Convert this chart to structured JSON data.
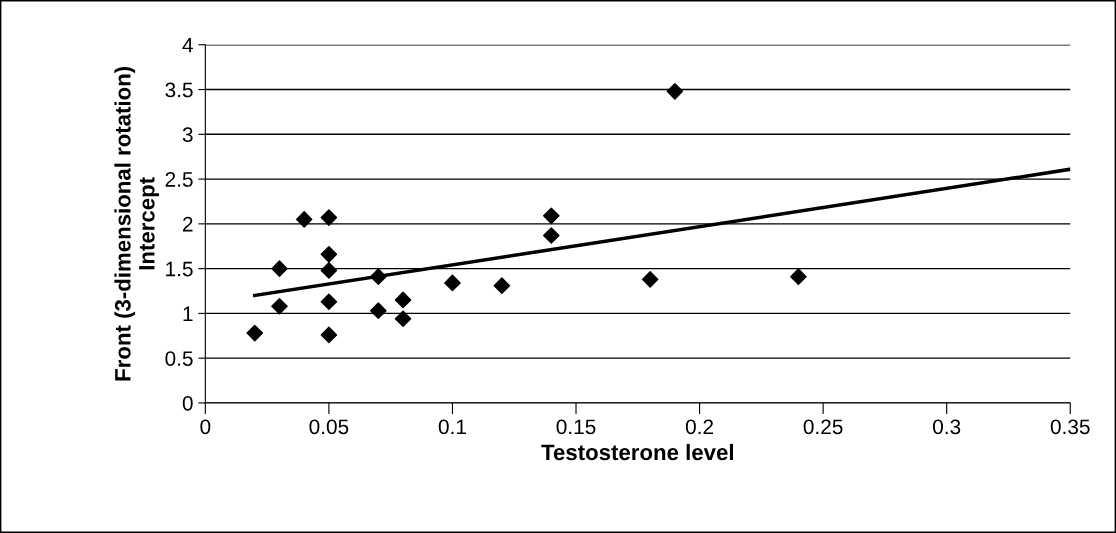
{
  "chart_data": {
    "type": "scatter",
    "xlabel": "Testosterone level",
    "ylabel": "Front (3-dimensional rotation)\nIntercept",
    "series": [
      {
        "color": "#000000",
        "marker": "diamond",
        "x": [
          0.02,
          0.03,
          0.03,
          0.04,
          0.05,
          0.05,
          0.05,
          0.05,
          0.05,
          0.07,
          0.07,
          0.08,
          0.08,
          0.1,
          0.12,
          0.14,
          0.14,
          0.18,
          0.19,
          0.24
        ],
        "values": [
          0.78,
          1.5,
          1.08,
          2.05,
          2.07,
          1.66,
          1.48,
          1.13,
          0.76,
          1.41,
          1.03,
          1.15,
          0.94,
          1.34,
          1.31,
          2.09,
          1.87,
          1.38,
          3.48,
          1.41
        ]
      },
      {
        "type": "line",
        "color": "#000000",
        "marker": "none",
        "x": [
          0.02,
          0.35
        ],
        "values": [
          1.2,
          2.61
        ]
      }
    ],
    "xlim": [
      0,
      0.35
    ],
    "xticks": [
      0,
      0.05,
      0.1,
      0.15,
      0.2,
      0.25,
      0.3,
      0.35
    ],
    "ylim": [
      0,
      4
    ],
    "yticks": [
      0,
      0.5,
      1,
      1.5,
      2,
      2.5,
      3,
      3.5,
      4
    ],
    "grid": "y",
    "legend": false
  }
}
